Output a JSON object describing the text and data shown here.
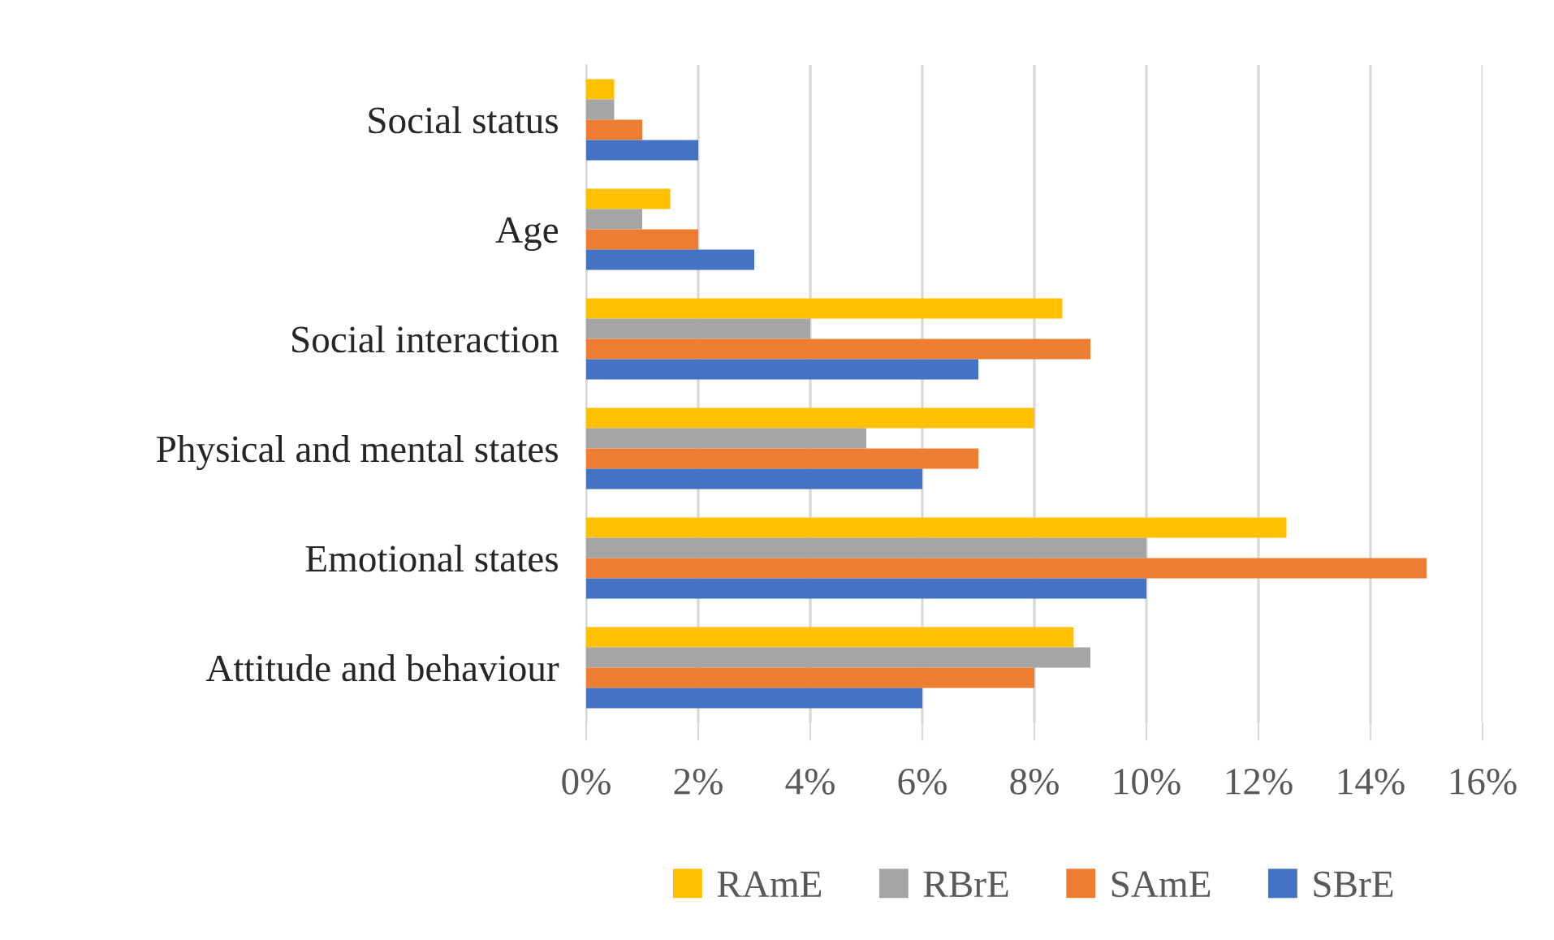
{
  "chart_data": {
    "type": "bar",
    "orientation": "horizontal",
    "categories": [
      "Social status",
      "Age",
      "Social interaction",
      "Physical and mental states",
      "Emotional states",
      "Attitude and behaviour"
    ],
    "series": [
      {
        "name": "RAmE",
        "color": "#ffc000",
        "values": [
          0.5,
          1.5,
          8.5,
          8,
          12.5,
          8.7
        ]
      },
      {
        "name": "RBrE",
        "color": "#a5a5a5",
        "values": [
          0.5,
          1,
          4,
          5,
          10,
          9
        ]
      },
      {
        "name": "SAmE",
        "color": "#ed7d31",
        "values": [
          1,
          2,
          9,
          7,
          15,
          8
        ]
      },
      {
        "name": "SBrE",
        "color": "#4472c4",
        "values": [
          2,
          3,
          7,
          6,
          10,
          6
        ]
      }
    ],
    "xlim": [
      0,
      16
    ],
    "xticks": [
      {
        "value": 0,
        "label": "0%"
      },
      {
        "value": 2,
        "label": "2%"
      },
      {
        "value": 4,
        "label": "4%"
      },
      {
        "value": 6,
        "label": "6%"
      },
      {
        "value": 8,
        "label": "8%"
      },
      {
        "value": 10,
        "label": "10%"
      },
      {
        "value": 12,
        "label": "12%"
      },
      {
        "value": 14,
        "label": "14%"
      },
      {
        "value": 16,
        "label": "16%"
      }
    ],
    "grid": "x",
    "legend": "bottom"
  }
}
